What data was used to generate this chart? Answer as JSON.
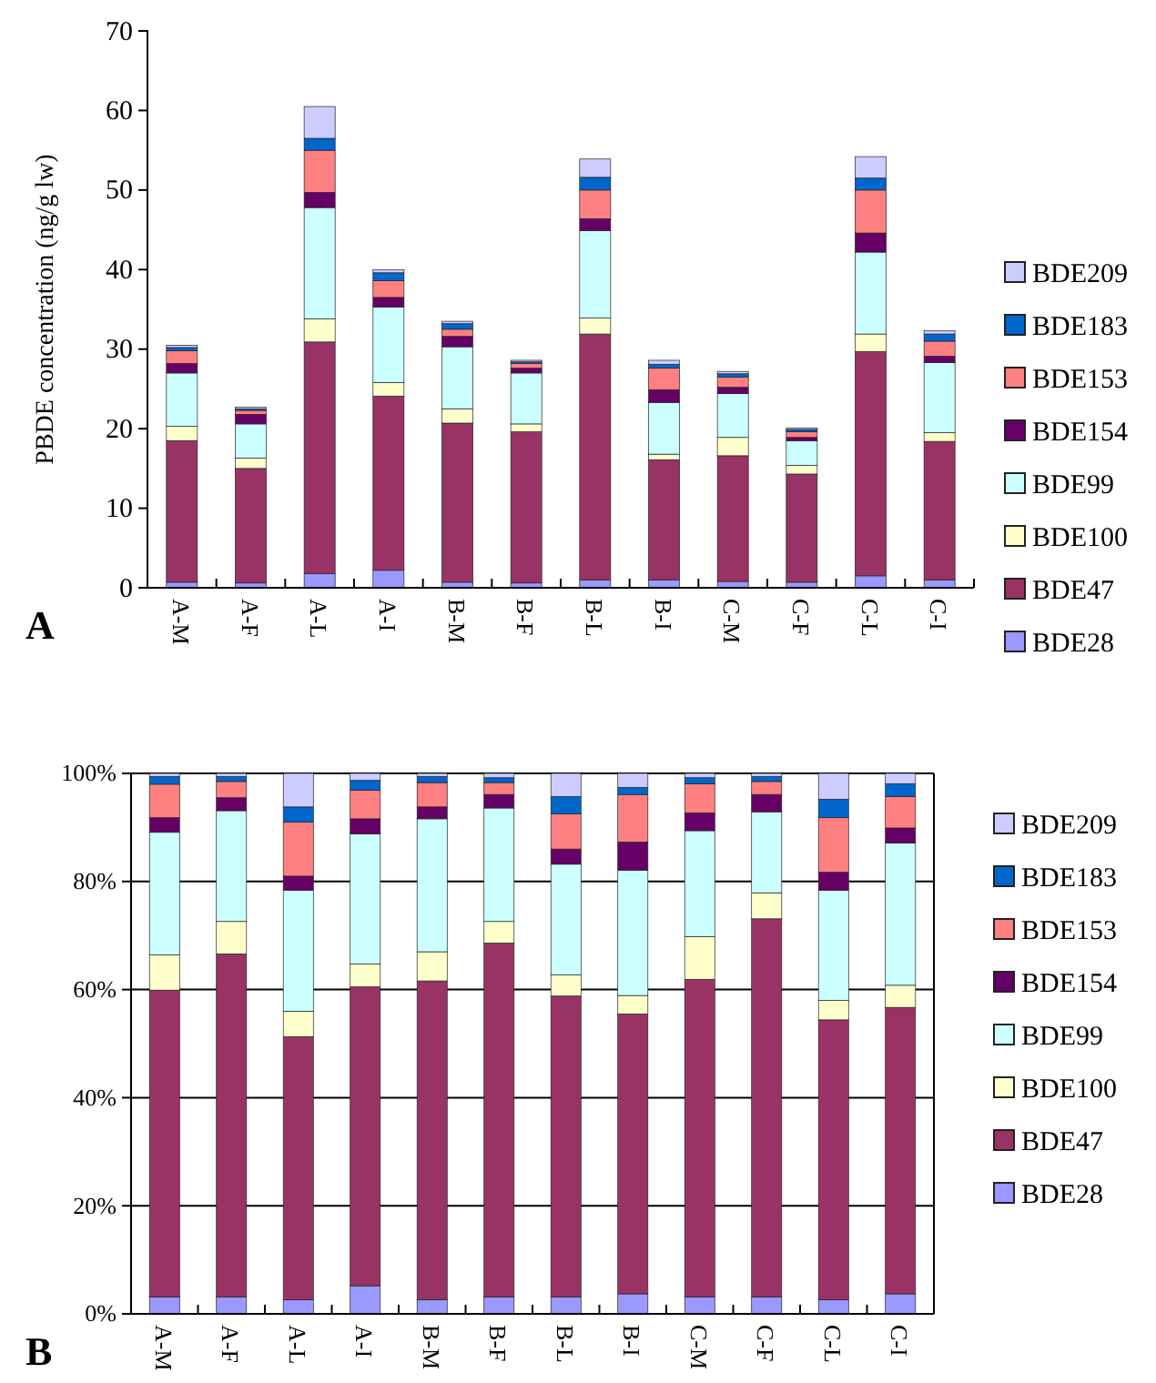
{
  "chart_data": [
    {
      "type": "bar",
      "stacked": true,
      "ylabel": "PBDE concentration (ng/g lw)",
      "categories": [
        "A-M",
        "A-F",
        "A-L",
        "A-I",
        "B-M",
        "B-F",
        "B-L",
        "B-I",
        "C-M",
        "C-F",
        "C-L",
        "C-I"
      ],
      "ylim": [
        0,
        70
      ],
      "yticks": [
        0,
        10,
        20,
        30,
        40,
        50,
        60,
        70
      ],
      "grid": false,
      "legend": "right",
      "annotations": [
        "A"
      ],
      "series": [
        {
          "name": "BDE28",
          "color": "#9999ff",
          "values": [
            0.7,
            0.6,
            1.8,
            2.2,
            0.7,
            0.6,
            1.0,
            1.0,
            0.8,
            0.7,
            1.5,
            1.0
          ]
        },
        {
          "name": "BDE47",
          "color": "#993366",
          "values": [
            17.8,
            14.4,
            29.1,
            21.9,
            20.0,
            19.0,
            30.9,
            15.1,
            15.8,
            13.6,
            28.2,
            17.4
          ]
        },
        {
          "name": "BDE100",
          "color": "#ffffcc",
          "values": [
            1.8,
            1.3,
            2.9,
            1.7,
            1.8,
            1.0,
            2.0,
            0.7,
            2.3,
            1.1,
            2.2,
            1.1
          ]
        },
        {
          "name": "BDE99",
          "color": "#ccffff",
          "values": [
            6.7,
            4.3,
            14.0,
            9.5,
            7.8,
            6.4,
            11.0,
            6.5,
            5.5,
            3.1,
            10.3,
            8.8
          ]
        },
        {
          "name": "BDE154",
          "color": "#660066",
          "values": [
            1.2,
            1.2,
            1.9,
            1.2,
            1.3,
            0.6,
            1.5,
            1.6,
            0.8,
            0.4,
            2.4,
            0.8
          ]
        },
        {
          "name": "BDE153",
          "color": "#ff8080",
          "values": [
            1.6,
            0.5,
            5.3,
            2.1,
            0.9,
            0.6,
            3.6,
            2.7,
            1.3,
            0.7,
            5.4,
            1.9
          ]
        },
        {
          "name": "BDE183",
          "color": "#0066cc",
          "values": [
            0.4,
            0.2,
            1.5,
            1.0,
            0.7,
            0.2,
            1.6,
            0.5,
            0.4,
            0.3,
            1.5,
            0.9
          ]
        },
        {
          "name": "BDE209",
          "color": "#ccccff",
          "values": [
            0.3,
            0.2,
            4.0,
            0.4,
            0.3,
            0.2,
            2.3,
            0.5,
            0.3,
            0.2,
            2.7,
            0.4
          ]
        }
      ]
    },
    {
      "type": "bar",
      "stacked": true,
      "categories": [
        "A-M",
        "A-F",
        "A-L",
        "A-I",
        "B-M",
        "B-F",
        "B-L",
        "B-I",
        "C-M",
        "C-F",
        "C-L",
        "C-I"
      ],
      "ylim": [
        0,
        100
      ],
      "yticks": [
        {
          "value": 0,
          "label": "0%"
        },
        {
          "value": 20,
          "label": "20%"
        },
        {
          "value": 40,
          "label": "40%"
        },
        {
          "value": 60,
          "label": "60%"
        },
        {
          "value": 80,
          "label": "80%"
        },
        {
          "value": 100,
          "label": "100%"
        }
      ],
      "grid": "y",
      "legend": "right",
      "annotations": [
        "B"
      ],
      "series": [
        {
          "name": "BDE28",
          "color": "#9999ff",
          "values": [
            3.1,
            3.1,
            2.6,
            5.2,
            2.6,
            3.1,
            3.1,
            3.7,
            3.1,
            3.1,
            2.6,
            3.7
          ]
        },
        {
          "name": "BDE47",
          "color": "#993366",
          "values": [
            56.8,
            63.5,
            48.7,
            55.3,
            59.0,
            65.5,
            55.7,
            51.8,
            58.8,
            70.0,
            51.8,
            53.0
          ]
        },
        {
          "name": "BDE100",
          "color": "#ffffcc",
          "values": [
            6.5,
            6.0,
            4.7,
            4.2,
            5.4,
            4.0,
            3.9,
            3.4,
            7.9,
            4.8,
            3.6,
            4.1
          ]
        },
        {
          "name": "BDE99",
          "color": "#ccffff",
          "values": [
            22.7,
            20.5,
            22.4,
            24.1,
            24.6,
            21.0,
            20.5,
            23.2,
            19.6,
            15.0,
            20.4,
            26.3
          ]
        },
        {
          "name": "BDE154",
          "color": "#660066",
          "values": [
            2.7,
            2.4,
            2.6,
            2.8,
            2.2,
            2.5,
            2.8,
            5.2,
            3.3,
            3.2,
            3.3,
            2.8
          ]
        },
        {
          "name": "BDE153",
          "color": "#ff8080",
          "values": [
            6.2,
            3.0,
            10.0,
            5.3,
            4.5,
            2.2,
            6.5,
            8.8,
            5.4,
            2.4,
            10.1,
            5.8
          ]
        },
        {
          "name": "BDE183",
          "color": "#0066cc",
          "values": [
            1.4,
            0.9,
            2.8,
            1.8,
            1.1,
            0.9,
            3.2,
            1.3,
            1.1,
            0.9,
            3.4,
            2.4
          ]
        },
        {
          "name": "BDE209",
          "color": "#ccccff",
          "values": [
            0.6,
            0.6,
            6.2,
            1.3,
            0.6,
            0.8,
            4.3,
            2.6,
            0.8,
            0.6,
            4.8,
            1.9
          ]
        }
      ]
    }
  ]
}
